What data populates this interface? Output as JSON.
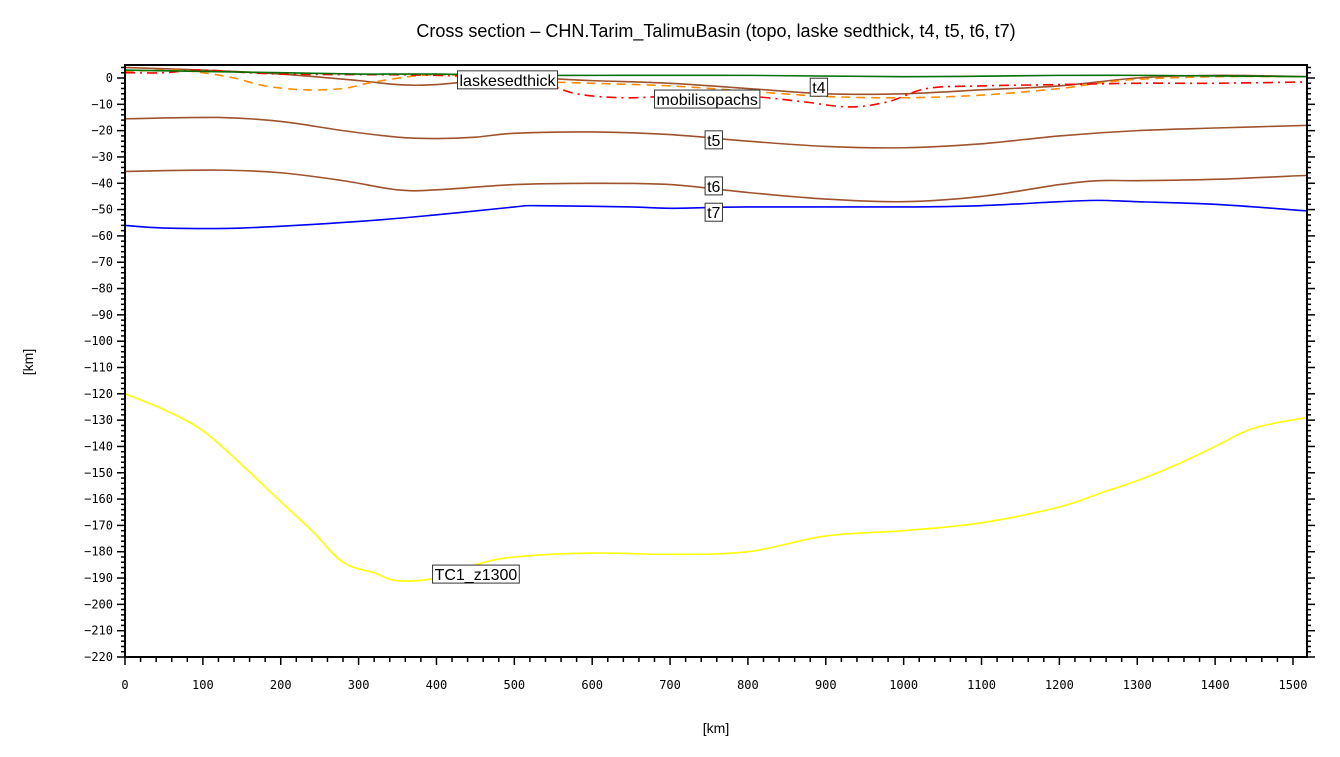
{
  "chart_data": {
    "type": "line",
    "title": "Cross section – CHN.Tarim_TalimuBasin (topo, laske sedthick, t4, t5, t6, t7)",
    "xlabel": "[km]",
    "ylabel": "[km]",
    "xlim": [
      0,
      1518
    ],
    "ylim": [
      -220,
      5
    ],
    "xticks": [
      0,
      100,
      200,
      300,
      400,
      500,
      600,
      700,
      800,
      900,
      1000,
      1100,
      1200,
      1300,
      1400,
      1500
    ],
    "yticks": [
      0,
      -10,
      -20,
      -30,
      -40,
      -50,
      -60,
      -70,
      -80,
      -90,
      -100,
      -110,
      -120,
      -130,
      -140,
      -150,
      -160,
      -170,
      -180,
      -190,
      -200,
      -210,
      -220
    ],
    "grid": false,
    "series": [
      {
        "name": "topo",
        "label": "",
        "color": "#007000",
        "style": "solid",
        "x": [
          0,
          100,
          200,
          300,
          400,
          500,
          600,
          800,
          1000,
          1200,
          1300,
          1400,
          1518
        ],
        "y": [
          3,
          2.5,
          2,
          1.5,
          1.5,
          1,
          1,
          1,
          0.5,
          1,
          1,
          0.8,
          0.5
        ]
      },
      {
        "name": "t4",
        "label": "t4",
        "color": "#a0522d",
        "style": "solid",
        "x": [
          0,
          100,
          200,
          300,
          350,
          400,
          500,
          600,
          700,
          800,
          900,
          1000,
          1100,
          1200,
          1300,
          1400,
          1518
        ],
        "y": [
          4,
          3,
          1.5,
          -1,
          -2.5,
          -2.5,
          0,
          -1,
          -2,
          -4,
          -6,
          -6,
          -4.5,
          -3,
          0,
          1,
          0.5
        ]
      },
      {
        "name": "laske sedthick",
        "label": "laskesedthick",
        "color": "#ff8c00",
        "style": "dashed",
        "x": [
          0,
          60,
          100,
          140,
          180,
          230,
          280,
          320,
          380,
          430,
          500,
          600,
          700,
          800,
          900,
          1000,
          1100,
          1200,
          1250,
          1300,
          1400,
          1518
        ],
        "y": [
          2.5,
          3,
          2,
          0,
          -3,
          -4.5,
          -4,
          -1.5,
          1,
          1,
          -1,
          -2,
          -3,
          -5,
          -7,
          -7.5,
          -6.5,
          -4,
          -2,
          -0.5,
          0.5,
          0.5
        ]
      },
      {
        "name": "mobilisopachs",
        "label": "mobilisopachs",
        "color": "#ff0000",
        "style": "dashdot",
        "x": [
          0,
          50,
          100,
          200,
          400,
          520,
          580,
          640,
          700,
          800,
          870,
          930,
          980,
          1030,
          1100,
          1200,
          1300,
          1400,
          1518
        ],
        "y": [
          2,
          2,
          3,
          1.5,
          1,
          -1,
          -6,
          -7.5,
          -7,
          -7,
          -9,
          -11,
          -9,
          -4,
          -3,
          -2.5,
          -2,
          -2,
          -1.5
        ]
      },
      {
        "name": "t5",
        "label": "t5",
        "color": "#a0522d",
        "style": "solid",
        "x": [
          0,
          120,
          200,
          280,
          350,
          400,
          450,
          500,
          600,
          700,
          800,
          900,
          1000,
          1100,
          1200,
          1300,
          1400,
          1518
        ],
        "y": [
          -15.5,
          -15,
          -16.5,
          -20,
          -22.5,
          -23,
          -22.5,
          -21,
          -20.5,
          -21.5,
          -24,
          -26,
          -26.5,
          -25,
          -22,
          -20,
          -19,
          -18
        ]
      },
      {
        "name": "t6",
        "label": "t6",
        "color": "#a0522d",
        "style": "solid",
        "x": [
          0,
          120,
          200,
          280,
          350,
          400,
          500,
          600,
          700,
          800,
          900,
          1000,
          1100,
          1200,
          1250,
          1300,
          1400,
          1518
        ],
        "y": [
          -35.5,
          -35,
          -36,
          -39,
          -42.5,
          -42.5,
          -40.5,
          -40,
          -40.5,
          -43.5,
          -46,
          -47,
          -45,
          -40.5,
          -39,
          -39,
          -38.5,
          -37
        ]
      },
      {
        "name": "t7",
        "label": "t7",
        "color": "#0000ff",
        "style": "solid",
        "x": [
          0,
          50,
          150,
          300,
          400,
          500,
          530,
          650,
          700,
          800,
          1000,
          1100,
          1200,
          1250,
          1300,
          1400,
          1518
        ],
        "y": [
          -56,
          -57,
          -57,
          -54.5,
          -52,
          -49,
          -48.5,
          -49,
          -49.5,
          -49,
          -49,
          -48.5,
          -47,
          -46.5,
          -47,
          -48,
          -50.5
        ]
      },
      {
        "name": "TC1_z1300",
        "label": "TC1_z1300",
        "color": "#ffff00",
        "style": "solid",
        "x": [
          0,
          50,
          100,
          150,
          200,
          240,
          280,
          320,
          350,
          400,
          450,
          500,
          600,
          700,
          800,
          900,
          1000,
          1100,
          1200,
          1250,
          1300,
          1350,
          1400,
          1450,
          1518
        ],
        "y": [
          -120,
          -126,
          -134,
          -147,
          -161,
          -172,
          -184,
          -188,
          -191,
          -190,
          -185,
          -182,
          -180.5,
          -181,
          -180,
          -174,
          -172,
          -169,
          -163,
          -158,
          -153,
          -147,
          -140,
          -133,
          -129
        ]
      }
    ]
  }
}
